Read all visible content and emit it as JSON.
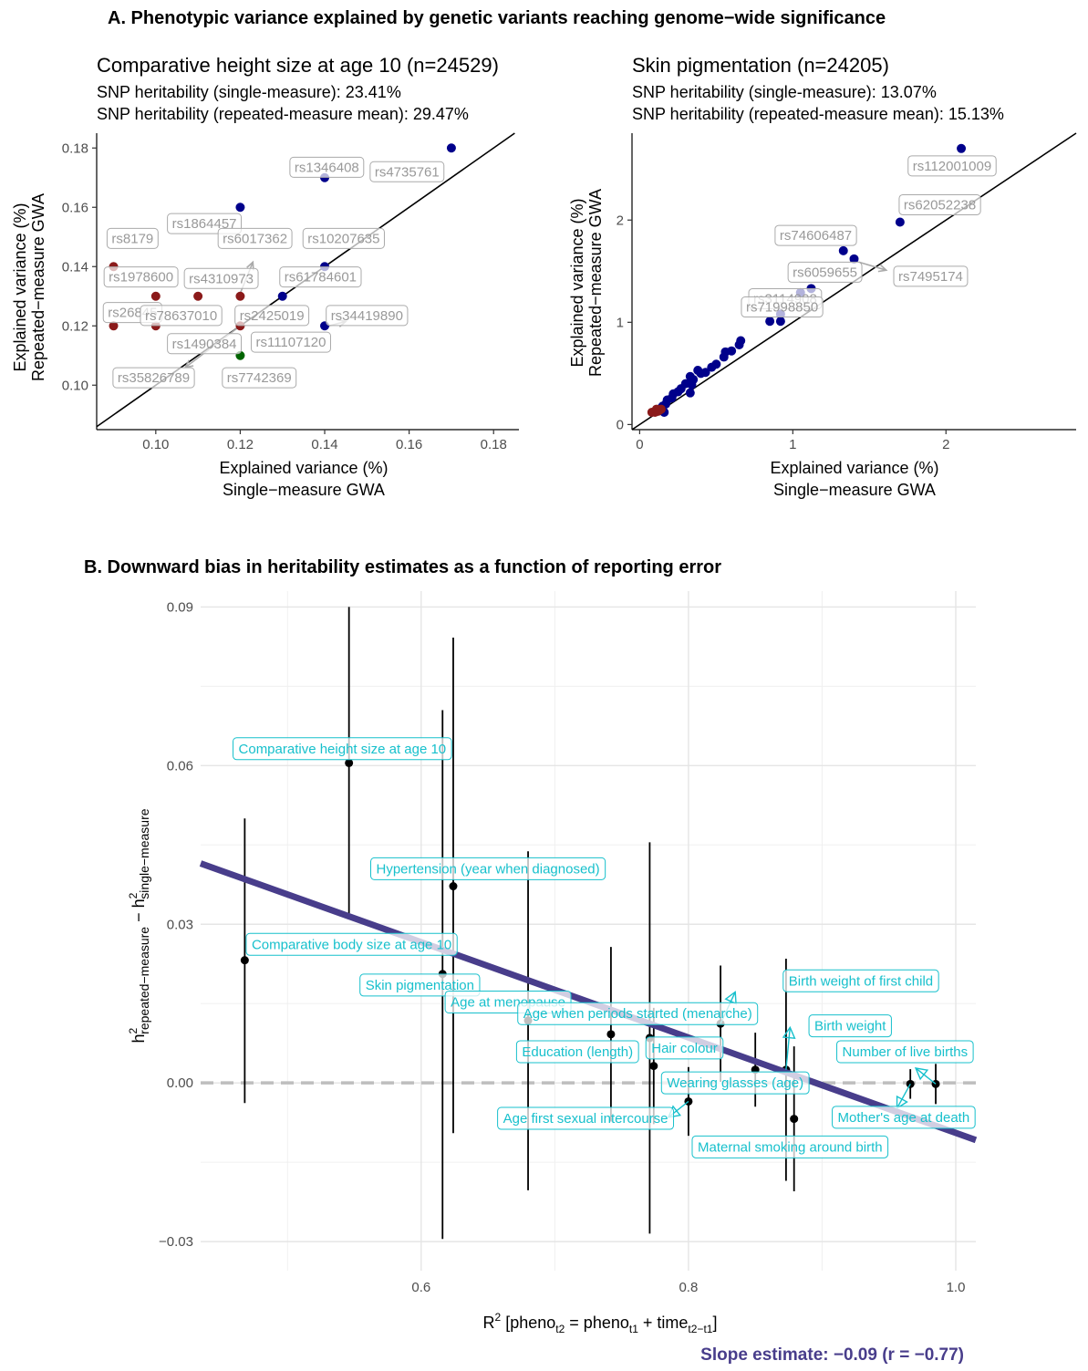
{
  "panelA": {
    "title": "A. Phenotypic variance explained by genetic variants reaching genome−wide significance",
    "xlabel1": "Explained variance (%)",
    "xlabel2": "Single−measure GWA",
    "ylabel1": "Explained variance (%)",
    "ylabel2": "Repeated−measure GWA",
    "colors": {
      "blue": "#00008b",
      "red": "#8b1a1a",
      "green": "#006400",
      "label_text": "#999999"
    },
    "left": {
      "title": "Comparative height size at age 10 (n=24529)",
      "sub1": "SNP heritability (single-measure): 23.41%",
      "sub2": "SNP heritability (repeated-measure mean): 29.47%",
      "xlim": [
        0.086,
        0.186
      ],
      "ylim": [
        0.085,
        0.185
      ],
      "xticks": [
        0.1,
        0.12,
        0.14,
        0.16,
        0.18
      ],
      "yticks": [
        0.1,
        0.12,
        0.14,
        0.16,
        0.18
      ],
      "xtick_labels": [
        "0.10",
        "0.12",
        "0.14",
        "0.16",
        "0.18"
      ],
      "ytick_labels": [
        "0.10",
        "0.12",
        "0.14",
        "0.16",
        "0.18"
      ],
      "points": [
        {
          "x": 0.17,
          "y": 0.18,
          "c": "blue"
        },
        {
          "x": 0.14,
          "y": 0.17,
          "c": "blue"
        },
        {
          "x": 0.12,
          "y": 0.16,
          "c": "blue"
        },
        {
          "x": 0.14,
          "y": 0.14,
          "c": "blue"
        },
        {
          "x": 0.13,
          "y": 0.13,
          "c": "blue"
        },
        {
          "x": 0.14,
          "y": 0.12,
          "c": "blue"
        },
        {
          "x": 0.09,
          "y": 0.14,
          "c": "red"
        },
        {
          "x": 0.1,
          "y": 0.13,
          "c": "red"
        },
        {
          "x": 0.11,
          "y": 0.13,
          "c": "red"
        },
        {
          "x": 0.12,
          "y": 0.13,
          "c": "red"
        },
        {
          "x": 0.09,
          "y": 0.12,
          "c": "red"
        },
        {
          "x": 0.1,
          "y": 0.12,
          "c": "red"
        },
        {
          "x": 0.12,
          "y": 0.12,
          "c": "red"
        },
        {
          "x": 0.12,
          "y": 0.11,
          "c": "green"
        }
      ],
      "labels": [
        {
          "text": "rs1346408",
          "x": 0.1405,
          "y": 0.1735
        },
        {
          "text": "rs4735761",
          "x": 0.1595,
          "y": 0.172
        },
        {
          "text": "rs1864457",
          "x": 0.1115,
          "y": 0.1545
        },
        {
          "text": "rs8179",
          "x": 0.0945,
          "y": 0.1495
        },
        {
          "text": "rs6017362",
          "x": 0.1235,
          "y": 0.1495
        },
        {
          "text": "rs10207635",
          "x": 0.1445,
          "y": 0.1495
        },
        {
          "text": "rs1978600",
          "x": 0.0965,
          "y": 0.1365
        },
        {
          "text": "rs4310973",
          "x": 0.1155,
          "y": 0.136
        },
        {
          "text": "rs61784601",
          "x": 0.139,
          "y": 0.1365
        },
        {
          "text": "rs26845",
          "x": 0.0945,
          "y": 0.1245
        },
        {
          "text": "rs78637010",
          "x": 0.106,
          "y": 0.1235
        },
        {
          "text": "rs2425019",
          "x": 0.1275,
          "y": 0.1235
        },
        {
          "text": "rs34419890",
          "x": 0.15,
          "y": 0.1235
        },
        {
          "text": "rs1490384",
          "x": 0.1115,
          "y": 0.114
        },
        {
          "text": "rs11107120",
          "x": 0.132,
          "y": 0.1145
        },
        {
          "text": "rs35826789",
          "x": 0.0995,
          "y": 0.1025
        },
        {
          "text": "rs7742369",
          "x": 0.1245,
          "y": 0.1025
        }
      ],
      "arrows": [
        {
          "x1": 0.12,
          "y1": 0.131,
          "x2": 0.123,
          "y2": 0.1415
        },
        {
          "x1": 0.141,
          "y1": 0.12,
          "x2": 0.145,
          "y2": 0.1215
        },
        {
          "x1": 0.12,
          "y1": 0.12,
          "x2": 0.107,
          "y2": 0.106
        }
      ]
    },
    "right": {
      "title": "Skin pigmentation (n=24205)",
      "sub1": "SNP heritability (single-measure): 13.07%",
      "sub2": "SNP heritability (repeated-measure mean): 15.13%",
      "xlim": [
        -0.05,
        2.85
      ],
      "ylim": [
        -0.05,
        2.85
      ],
      "xticks": [
        0,
        1,
        2
      ],
      "yticks": [
        0,
        1,
        2
      ],
      "xtick_labels": [
        "0",
        "1",
        "2"
      ],
      "ytick_labels": [
        "0",
        "1",
        "2"
      ],
      "points": [
        {
          "x": 2.1,
          "y": 2.7,
          "c": "blue"
        },
        {
          "x": 1.7,
          "y": 1.98,
          "c": "blue"
        },
        {
          "x": 1.33,
          "y": 1.7,
          "c": "blue"
        },
        {
          "x": 1.4,
          "y": 1.62,
          "c": "blue"
        },
        {
          "x": 1.12,
          "y": 1.33,
          "c": "blue"
        },
        {
          "x": 1.05,
          "y": 1.29,
          "c": "blue"
        },
        {
          "x": 0.85,
          "y": 1.01,
          "c": "blue"
        },
        {
          "x": 0.92,
          "y": 1.01,
          "c": "blue"
        },
        {
          "x": 0.92,
          "y": 1.08,
          "c": "blue"
        },
        {
          "x": 0.66,
          "y": 0.82,
          "c": "blue"
        },
        {
          "x": 0.65,
          "y": 0.78,
          "c": "blue"
        },
        {
          "x": 0.6,
          "y": 0.72,
          "c": "blue"
        },
        {
          "x": 0.56,
          "y": 0.71,
          "c": "blue"
        },
        {
          "x": 0.55,
          "y": 0.66,
          "c": "blue"
        },
        {
          "x": 0.5,
          "y": 0.59,
          "c": "blue"
        },
        {
          "x": 0.47,
          "y": 0.56,
          "c": "blue"
        },
        {
          "x": 0.43,
          "y": 0.51,
          "c": "blue"
        },
        {
          "x": 0.4,
          "y": 0.5,
          "c": "blue"
        },
        {
          "x": 0.38,
          "y": 0.53,
          "c": "blue"
        },
        {
          "x": 0.35,
          "y": 0.44,
          "c": "blue"
        },
        {
          "x": 0.33,
          "y": 0.47,
          "c": "blue"
        },
        {
          "x": 0.34,
          "y": 0.39,
          "c": "blue"
        },
        {
          "x": 0.3,
          "y": 0.4,
          "c": "blue"
        },
        {
          "x": 0.33,
          "y": 0.31,
          "c": "blue"
        },
        {
          "x": 0.27,
          "y": 0.35,
          "c": "blue"
        },
        {
          "x": 0.25,
          "y": 0.32,
          "c": "blue"
        },
        {
          "x": 0.22,
          "y": 0.3,
          "c": "blue"
        },
        {
          "x": 0.21,
          "y": 0.26,
          "c": "blue"
        },
        {
          "x": 0.18,
          "y": 0.24,
          "c": "blue"
        },
        {
          "x": 0.17,
          "y": 0.2,
          "c": "blue"
        },
        {
          "x": 0.15,
          "y": 0.18,
          "c": "blue"
        },
        {
          "x": 0.14,
          "y": 0.16,
          "c": "blue"
        },
        {
          "x": 0.16,
          "y": 0.12,
          "c": "blue"
        },
        {
          "x": 0.12,
          "y": 0.13,
          "c": "red"
        },
        {
          "x": 0.1,
          "y": 0.12,
          "c": "red"
        },
        {
          "x": 0.08,
          "y": 0.12,
          "c": "red"
        },
        {
          "x": 0.13,
          "y": 0.14,
          "c": "red"
        },
        {
          "x": 0.14,
          "y": 0.15,
          "c": "red"
        },
        {
          "x": 0.11,
          "y": 0.15,
          "c": "red"
        }
      ],
      "labels": [
        {
          "text": "rs112001009",
          "x": 2.04,
          "y": 2.53
        },
        {
          "text": "rs62052238",
          "x": 1.96,
          "y": 2.15
        },
        {
          "text": "rs74606487",
          "x": 1.15,
          "y": 1.85
        },
        {
          "text": "rs6059655",
          "x": 1.21,
          "y": 1.49
        },
        {
          "text": "rs7495174",
          "x": 1.9,
          "y": 1.45
        },
        {
          "text": "rs3114908",
          "x": 0.95,
          "y": 1.23
        },
        {
          "text": "rs71998850",
          "x": 0.93,
          "y": 1.15
        }
      ],
      "arrows": [
        {
          "x1": 1.43,
          "y1": 1.59,
          "x2": 1.61,
          "y2": 1.51
        }
      ]
    }
  },
  "panelB": {
    "title": "B. Downward bias in heritability estimates as a function of reporting error",
    "xlim": [
      0.435,
      1.015
    ],
    "ylim": [
      -0.0355,
      0.093
    ],
    "xticks": [
      0.6,
      0.8,
      1.0
    ],
    "xtick_labels": [
      "0.6",
      "0.8",
      "1.0"
    ],
    "xminor": [
      0.5,
      0.7,
      0.9
    ],
    "yticks": [
      -0.03,
      0.0,
      0.03,
      0.06,
      0.09
    ],
    "ytick_labels": [
      "−0.03",
      "0.00",
      "0.03",
      "0.06",
      "0.09"
    ],
    "yminor": [
      -0.015,
      0.015,
      0.045,
      0.075
    ],
    "xlabel": {
      "r": "R",
      "sup": "2",
      "t1": " [pheno",
      "s1": "t2",
      "t2": " = pheno",
      "s2": "t1",
      "t3": " + time",
      "s3": "t2−t1",
      "t4": "]"
    },
    "ylabel": {
      "h1": "h",
      "sup1": "2",
      "sub1": "repeated−measure",
      "mid": " − h",
      "sup2": "2",
      "sub2": "single−measure"
    },
    "colors": {
      "line": "#483d8b",
      "label": "#17c0cc",
      "point": "#000000",
      "zero": "#bebebe"
    },
    "regression": {
      "x1": 0.435,
      "y1": 0.0415,
      "x2": 1.015,
      "y2": -0.0108
    },
    "slope_text": "Slope estimate: −0.09 (r = −0.77)",
    "points": [
      {
        "x": 0.468,
        "y": 0.0232,
        "lo": -0.0038,
        "hi": 0.05
      },
      {
        "x": 0.546,
        "y": 0.0605,
        "lo": 0.032,
        "hi": 0.09
      },
      {
        "x": 0.616,
        "y": 0.0206,
        "lo": -0.0295,
        "hi": 0.0705
      },
      {
        "x": 0.624,
        "y": 0.0372,
        "lo": -0.0095,
        "hi": 0.0842
      },
      {
        "x": 0.68,
        "y": 0.0118,
        "lo": -0.0203,
        "hi": 0.0438
      },
      {
        "x": 0.742,
        "y": 0.0092,
        "lo": -0.0073,
        "hi": 0.0257
      },
      {
        "x": 0.771,
        "y": 0.0085,
        "lo": -0.0285,
        "hi": 0.0455
      },
      {
        "x": 0.774,
        "y": 0.0032,
        "lo": -0.0078,
        "hi": 0.0142
      },
      {
        "x": 0.8,
        "y": -0.0035,
        "lo": -0.01,
        "hi": 0.003
      },
      {
        "x": 0.824,
        "y": 0.0112,
        "lo": 0.0002,
        "hi": 0.0222
      },
      {
        "x": 0.85,
        "y": 0.0025,
        "lo": -0.0045,
        "hi": 0.0095
      },
      {
        "x": 0.873,
        "y": 0.0025,
        "lo": -0.0185,
        "hi": 0.0235
      },
      {
        "x": 0.879,
        "y": -0.0068,
        "lo": -0.0205,
        "hi": 0.0069
      },
      {
        "x": 0.966,
        "y": -0.0002,
        "lo": -0.003,
        "hi": 0.0026
      },
      {
        "x": 0.985,
        "y": -0.0002,
        "lo": -0.004,
        "hi": 0.0036
      }
    ],
    "labels": [
      {
        "text": "Comparative height size at age 10",
        "x": 0.541,
        "y": 0.0632
      },
      {
        "text": "Hypertension (year when diagnosed)",
        "x": 0.65,
        "y": 0.0405
      },
      {
        "text": "Comparative body size at age 10",
        "x": 0.548,
        "y": 0.0262
      },
      {
        "text": "Skin pigmentation",
        "x": 0.599,
        "y": 0.0185
      },
      {
        "text": "Age at menopause",
        "x": 0.665,
        "y": 0.0153
      },
      {
        "text": "Age when periods started (menarche)",
        "x": 0.762,
        "y": 0.0131
      },
      {
        "text": "Education (length)",
        "x": 0.717,
        "y": 0.0059
      },
      {
        "text": "Hair colour",
        "x": 0.797,
        "y": 0.0066
      },
      {
        "text": "Wearing glasses (age)",
        "x": 0.835,
        "y": 0.0
      },
      {
        "text": "Age first sexual intercourse",
        "x": 0.723,
        "y": -0.0067
      },
      {
        "text": "Maternal smoking around birth",
        "x": 0.876,
        "y": -0.0121
      },
      {
        "text": "Birth weight of first child",
        "x": 0.929,
        "y": 0.0193
      },
      {
        "text": "Birth weight",
        "x": 0.921,
        "y": 0.0108
      },
      {
        "text": "Number of live births",
        "x": 0.962,
        "y": 0.0059
      },
      {
        "text": "Mother's age at death",
        "x": 0.961,
        "y": -0.0065
      }
    ],
    "arrows": [
      {
        "x1": 0.824,
        "y1": 0.0112,
        "x2": 0.835,
        "y2": 0.0172
      },
      {
        "x1": 0.873,
        "y1": 0.0025,
        "x2": 0.876,
        "y2": 0.0105
      },
      {
        "x1": 0.8,
        "y1": -0.0035,
        "x2": 0.785,
        "y2": -0.0065
      },
      {
        "x1": 0.966,
        "y1": -0.0002,
        "x2": 0.956,
        "y2": -0.0048
      },
      {
        "x1": 0.985,
        "y1": -0.0002,
        "x2": 0.97,
        "y2": 0.0028
      }
    ]
  }
}
